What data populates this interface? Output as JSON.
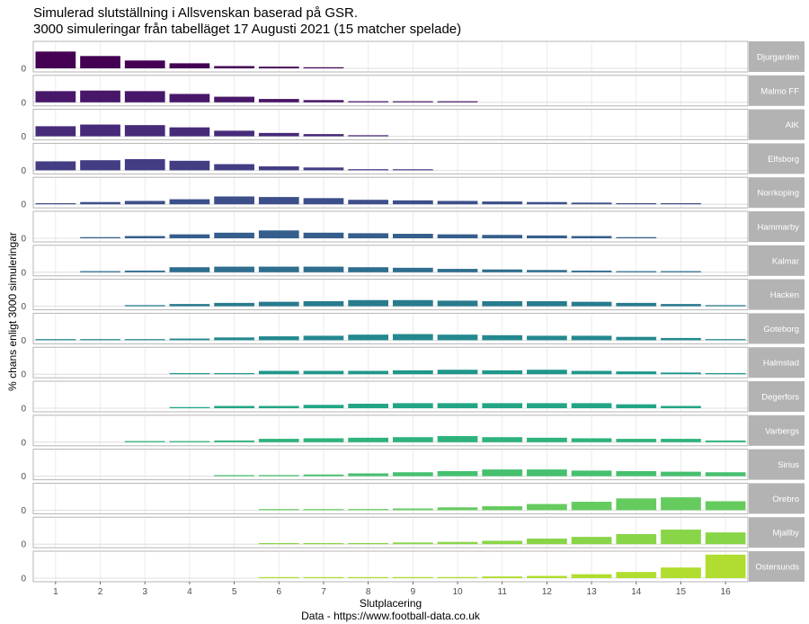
{
  "chart_data": {
    "type": "bar",
    "layout": "facet-rows",
    "title_line1": "Simulerad slutställning i Allsvenskan baserad på GSR.",
    "title_line2": "3000 simuleringar från tabelläget 17 Augusti 2021 (15 matcher spelade)",
    "xlabel": "Slutplacering",
    "ylabel": "% chans enligt 3000 simuleringar",
    "caption": "Data - https://www.football-data.co.uk",
    "x": [
      1,
      2,
      3,
      4,
      5,
      6,
      7,
      8,
      9,
      10,
      11,
      12,
      13,
      14,
      15,
      16
    ],
    "ylim": [
      0,
      0.45
    ],
    "y_tick_label": "0",
    "grid": true,
    "series": [
      {
        "name": "Djurgarden",
        "color": "#440154",
        "values": [
          0.3,
          0.22,
          0.14,
          0.09,
          0.04,
          0.03,
          0.015,
          0,
          0,
          0,
          0,
          0,
          0,
          0,
          0,
          0
        ]
      },
      {
        "name": "Malmo FF",
        "color": "#481769",
        "values": [
          0.2,
          0.21,
          0.2,
          0.15,
          0.1,
          0.06,
          0.04,
          0.02,
          0.01,
          0.01,
          0,
          0,
          0,
          0,
          0,
          0
        ]
      },
      {
        "name": "AIK",
        "color": "#472A7A",
        "values": [
          0.18,
          0.21,
          0.2,
          0.16,
          0.1,
          0.06,
          0.04,
          0.02,
          0,
          0,
          0,
          0,
          0,
          0,
          0,
          0
        ]
      },
      {
        "name": "Elfsborg",
        "color": "#433D84",
        "values": [
          0.16,
          0.18,
          0.2,
          0.17,
          0.11,
          0.07,
          0.05,
          0.02,
          0.01,
          0,
          0,
          0,
          0,
          0,
          0,
          0
        ]
      },
      {
        "name": "Norrkoping",
        "color": "#3C4F8A",
        "values": [
          0.01,
          0.04,
          0.06,
          0.09,
          0.14,
          0.13,
          0.11,
          0.08,
          0.07,
          0.06,
          0.05,
          0.04,
          0.03,
          0.02,
          0.015,
          0
        ]
      },
      {
        "name": "Hammarby",
        "color": "#355E8D",
        "values": [
          0,
          0.02,
          0.04,
          0.07,
          0.1,
          0.14,
          0.1,
          0.09,
          0.08,
          0.07,
          0.06,
          0.05,
          0.04,
          0.02,
          0,
          0
        ]
      },
      {
        "name": "Kalmar",
        "color": "#2E6D8E",
        "values": [
          0,
          0.02,
          0.03,
          0.09,
          0.1,
          0.1,
          0.1,
          0.09,
          0.08,
          0.06,
          0.05,
          0.04,
          0.03,
          0.02,
          0.02,
          0
        ]
      },
      {
        "name": "Hacken",
        "color": "#297B8E",
        "values": [
          0,
          0,
          0.02,
          0.04,
          0.06,
          0.08,
          0.09,
          0.11,
          0.11,
          0.1,
          0.09,
          0.09,
          0.08,
          0.06,
          0.04,
          0.02
        ]
      },
      {
        "name": "Goteborg",
        "color": "#23898E",
        "values": [
          0.02,
          0.02,
          0.02,
          0.03,
          0.05,
          0.07,
          0.08,
          0.1,
          0.11,
          0.1,
          0.09,
          0.08,
          0.08,
          0.06,
          0.04,
          0.02
        ]
      },
      {
        "name": "Halmstad",
        "color": "#1F978B",
        "values": [
          0,
          0,
          0,
          0.01,
          0.02,
          0.06,
          0.06,
          0.06,
          0.07,
          0.08,
          0.07,
          0.08,
          0.06,
          0.05,
          0.03,
          0.02
        ]
      },
      {
        "name": "Degerfors",
        "color": "#21A585",
        "values": [
          0,
          0,
          0,
          0.02,
          0.04,
          0.04,
          0.06,
          0.08,
          0.09,
          0.09,
          0.09,
          0.09,
          0.09,
          0.07,
          0.04,
          0
        ]
      },
      {
        "name": "Varbergs",
        "color": "#2EB37C",
        "values": [
          0,
          0,
          0.02,
          0.02,
          0.03,
          0.06,
          0.07,
          0.08,
          0.09,
          0.11,
          0.09,
          0.08,
          0.07,
          0.06,
          0.06,
          0.03
        ]
      },
      {
        "name": "Sirius",
        "color": "#46C06F",
        "values": [
          0,
          0,
          0,
          0,
          0.01,
          0.02,
          0.03,
          0.05,
          0.07,
          0.09,
          0.12,
          0.12,
          0.1,
          0.09,
          0.08,
          0.07
        ]
      },
      {
        "name": "Orebro",
        "color": "#65CB5E",
        "values": [
          0,
          0,
          0,
          0,
          0,
          0.01,
          0.01,
          0.02,
          0.03,
          0.05,
          0.07,
          0.11,
          0.15,
          0.21,
          0.23,
          0.16
        ]
      },
      {
        "name": "Mjallby",
        "color": "#89D548",
        "values": [
          0,
          0,
          0,
          0,
          0,
          0.01,
          0.01,
          0.02,
          0.03,
          0.04,
          0.06,
          0.1,
          0.13,
          0.18,
          0.26,
          0.21
        ]
      },
      {
        "name": "Ostersunds",
        "color": "#B0DD2F",
        "values": [
          0,
          0,
          0,
          0,
          0,
          0.01,
          0.01,
          0.01,
          0.02,
          0.02,
          0.03,
          0.04,
          0.07,
          0.11,
          0.19,
          0.42
        ]
      }
    ]
  }
}
